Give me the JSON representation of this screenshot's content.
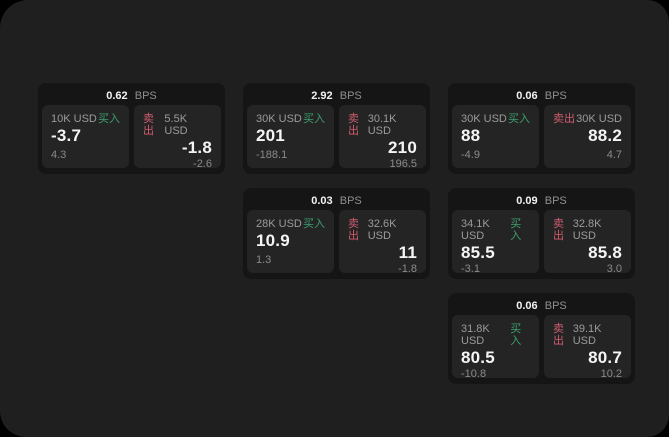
{
  "labels": {
    "bps_unit": "BPS",
    "buy": "买入",
    "sell": "卖出"
  },
  "colors": {
    "surface": "#1f1f1f",
    "card_bg": "#151515",
    "panel_bg": "#242424",
    "buy_green": "#3da06e",
    "sell_red": "#cf5c6e",
    "text_primary": "#f5f5f5",
    "text_secondary": "#9b9b9b"
  },
  "columns": [
    {
      "cards": [
        {
          "bps": "0.62",
          "buy": {
            "amount": "10K USD",
            "value": "-3.7",
            "sub": "4.3"
          },
          "sell": {
            "amount": "5.5K USD",
            "value": "-1.8",
            "sub": "-2.6"
          }
        }
      ]
    },
    {
      "cards": [
        {
          "bps": "2.92",
          "buy": {
            "amount": "30K USD",
            "value": "201",
            "sub": "-188.1"
          },
          "sell": {
            "amount": "30.1K USD",
            "value": "210",
            "sub": "196.5"
          }
        },
        {
          "bps": "0.03",
          "buy": {
            "amount": "28K USD",
            "value": "10.9",
            "sub": "1.3"
          },
          "sell": {
            "amount": "32.6K USD",
            "value": "11",
            "sub": "-1.8"
          }
        }
      ]
    },
    {
      "cards": [
        {
          "bps": "0.06",
          "buy": {
            "amount": "30K USD",
            "value": "88",
            "sub": "-4.9"
          },
          "sell": {
            "amount": "30K USD",
            "value": "88.2",
            "sub": "4.7"
          }
        },
        {
          "bps": "0.09",
          "buy": {
            "amount": "34.1K USD",
            "value": "85.5",
            "sub": "-3.1"
          },
          "sell": {
            "amount": "32.8K USD",
            "value": "85.8",
            "sub": "3.0"
          }
        },
        {
          "bps": "0.06",
          "buy": {
            "amount": "31.8K USD",
            "value": "80.5",
            "sub": "-10.8"
          },
          "sell": {
            "amount": "39.1K USD",
            "value": "80.7",
            "sub": "10.2"
          }
        }
      ]
    }
  ]
}
